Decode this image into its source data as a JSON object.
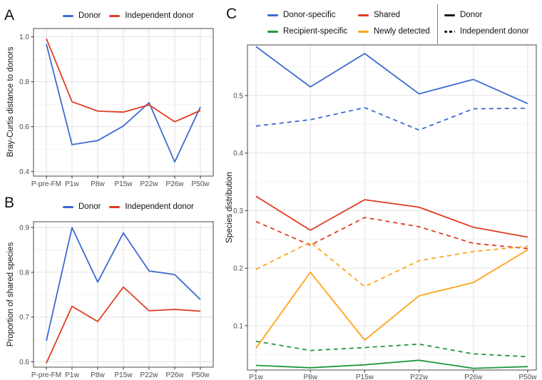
{
  "chart_data": [
    {
      "type": "line",
      "panel_label": "A",
      "title": "",
      "xlabel": "",
      "ylabel": "Bray-Curtis distance to donors",
      "categories": [
        "P-pre-FM",
        "P1w",
        "P8w",
        "P15w",
        "P22w",
        "P26w",
        "P50w"
      ],
      "ylim": [
        0.38,
        1.037
      ],
      "yticks": [
        0.4,
        0.6,
        0.8,
        1.0
      ],
      "ytick_labels": [
        "0.4",
        "0.6",
        "0.8",
        "1.0"
      ],
      "yticks_minor": [
        0.5,
        0.7,
        0.9
      ],
      "grid": true,
      "legend_position": "top",
      "legend": [
        {
          "label": "Donor",
          "color": "#3c6bd2",
          "linetype": "solid"
        },
        {
          "label": "Independent donor",
          "color": "#e03c22",
          "linetype": "solid"
        }
      ],
      "series": [
        {
          "name": "Donor",
          "color": "#3c6bd2",
          "linetype": "solid",
          "values": [
            0.968,
            0.52,
            0.538,
            0.603,
            0.707,
            0.443,
            0.688
          ]
        },
        {
          "name": "Independent donor",
          "color": "#e03c22",
          "linetype": "solid",
          "values": [
            0.992,
            0.711,
            0.669,
            0.665,
            0.697,
            0.622,
            0.672
          ]
        }
      ]
    },
    {
      "type": "line",
      "panel_label": "B",
      "title": "",
      "xlabel": "",
      "ylabel": "Proportion of shared species",
      "categories": [
        "P-pre-FM",
        "P1w",
        "P8w",
        "P15w",
        "P22w",
        "P26w",
        "P50w"
      ],
      "ylim": [
        0.588,
        0.913
      ],
      "yticks": [
        0.6,
        0.7,
        0.8,
        0.9
      ],
      "ytick_labels": [
        "0.6",
        "0.7",
        "0.8",
        "0.9"
      ],
      "yticks_minor": [
        0.65,
        0.75,
        0.85
      ],
      "grid": true,
      "legend_position": "top",
      "legend": [
        {
          "label": "Donor",
          "color": "#3c6bd2",
          "linetype": "solid"
        },
        {
          "label": "Independent donor",
          "color": "#e03c22",
          "linetype": "solid"
        }
      ],
      "series": [
        {
          "name": "Donor",
          "color": "#3c6bd2",
          "linetype": "solid",
          "values": [
            0.647,
            0.9,
            0.778,
            0.888,
            0.803,
            0.795,
            0.739
          ]
        },
        {
          "name": "Independent donor",
          "color": "#e03c22",
          "linetype": "solid",
          "values": [
            0.597,
            0.724,
            0.69,
            0.767,
            0.714,
            0.717,
            0.713
          ]
        }
      ]
    },
    {
      "type": "line",
      "panel_label": "C",
      "title": "",
      "xlabel": "",
      "ylabel": "Species distribution",
      "categories": [
        "P1w",
        "P8w",
        "P15w",
        "P22w",
        "P26w",
        "P50w"
      ],
      "ylim": [
        0.023,
        0.588
      ],
      "yticks": [
        0.1,
        0.2,
        0.3,
        0.4,
        0.5
      ],
      "ytick_labels": [
        "0.1",
        "0.2",
        "0.3",
        "0.4",
        "0.5"
      ],
      "yticks_minor": [
        0.05,
        0.15,
        0.25,
        0.35,
        0.45,
        0.55
      ],
      "grid": true,
      "legend_position": "top",
      "legend": [
        {
          "label": "Donor-specific",
          "color": "#3c6bd2",
          "linetype": "solid"
        },
        {
          "label": "Shared",
          "color": "#e03c22",
          "linetype": "solid"
        },
        {
          "label": "Recipient-specific",
          "color": "#20993c",
          "linetype": "solid"
        },
        {
          "label": "Newly detected",
          "color": "#ffa41b",
          "linetype": "solid"
        }
      ],
      "legend_linetypes": [
        {
          "label": "Donor",
          "linetype": "solid",
          "color": "#1a1a1a"
        },
        {
          "label": "Independent donor",
          "linetype": "dashed",
          "color": "#1a1a1a"
        }
      ],
      "series": [
        {
          "name": "Donor-specific (Donor)",
          "group": "Donor-specific",
          "donor_type": "Donor",
          "color": "#3c6bd2",
          "linetype": "solid",
          "values": [
            0.585,
            0.515,
            0.573,
            0.503,
            0.528,
            0.486
          ]
        },
        {
          "name": "Donor-specific (Independent donor)",
          "group": "Donor-specific",
          "donor_type": "Independent donor",
          "color": "#3c6bd2",
          "linetype": "dashed",
          "values": [
            0.447,
            0.458,
            0.479,
            0.44,
            0.477,
            0.478
          ]
        },
        {
          "name": "Shared (Donor)",
          "group": "Shared",
          "donor_type": "Donor",
          "color": "#e03c22",
          "linetype": "solid",
          "values": [
            0.325,
            0.266,
            0.319,
            0.306,
            0.271,
            0.254
          ]
        },
        {
          "name": "Shared (Independent donor)",
          "group": "Shared",
          "donor_type": "Independent donor",
          "color": "#e03c22",
          "linetype": "dashed",
          "values": [
            0.281,
            0.24,
            0.288,
            0.272,
            0.243,
            0.234
          ]
        },
        {
          "name": "Recipient-specific (Donor)",
          "group": "Recipient-specific",
          "donor_type": "Donor",
          "color": "#20993c",
          "linetype": "solid",
          "values": [
            0.031,
            0.027,
            0.032,
            0.04,
            0.026,
            0.029
          ]
        },
        {
          "name": "Recipient-specific (Independent donor)",
          "group": "Recipient-specific",
          "donor_type": "Independent donor",
          "color": "#20993c",
          "linetype": "dashed",
          "values": [
            0.073,
            0.057,
            0.062,
            0.068,
            0.051,
            0.046
          ]
        },
        {
          "name": "Newly detected (Donor)",
          "group": "Newly detected",
          "donor_type": "Donor",
          "color": "#ffa41b",
          "linetype": "solid",
          "values": [
            0.061,
            0.193,
            0.075,
            0.152,
            0.175,
            0.232
          ]
        },
        {
          "name": "Newly detected (Independent donor)",
          "group": "Newly detected",
          "donor_type": "Independent donor",
          "color": "#ffa41b",
          "linetype": "dashed",
          "values": [
            0.198,
            0.245,
            0.168,
            0.213,
            0.229,
            0.238
          ]
        }
      ]
    }
  ]
}
